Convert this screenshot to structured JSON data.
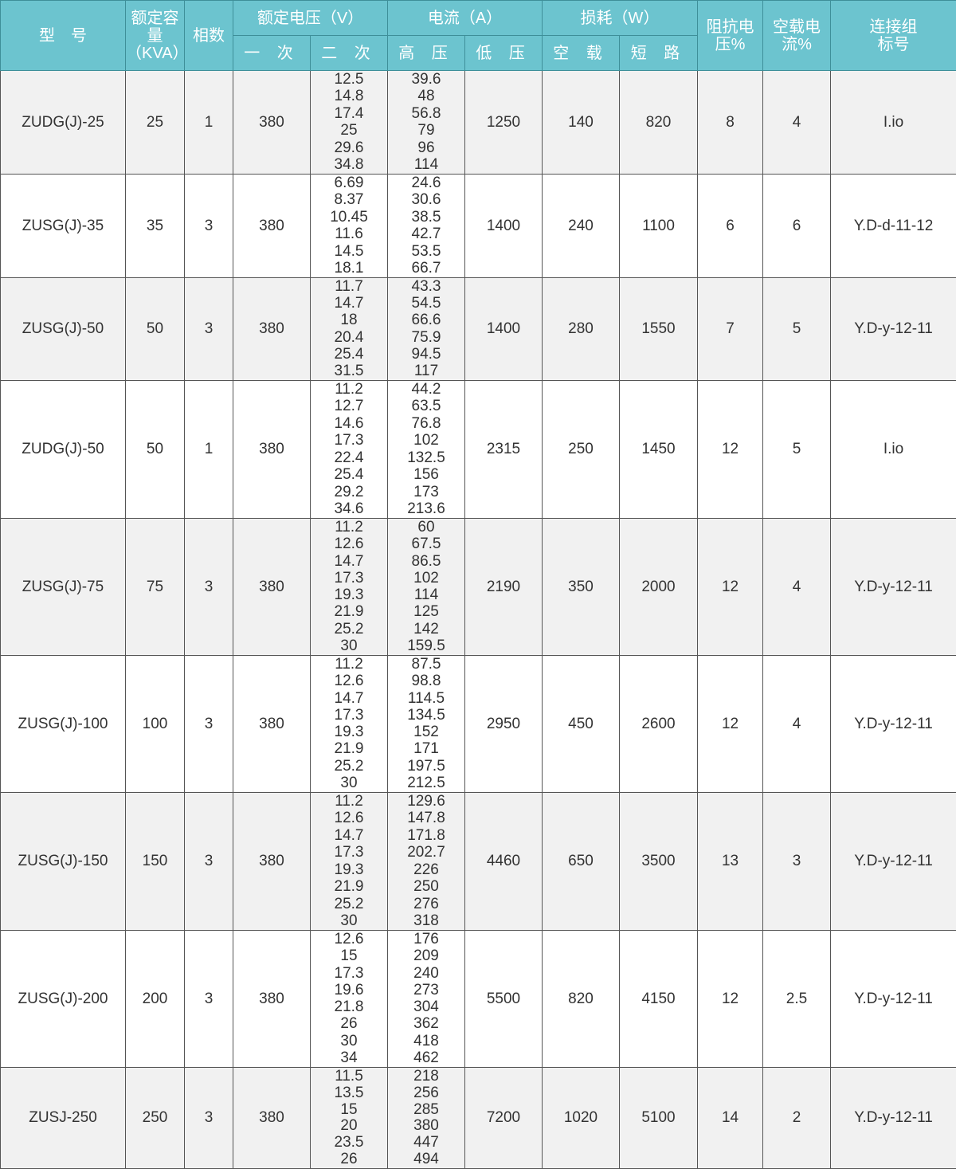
{
  "header": {
    "model": "型　号",
    "capacity": "额定容量（KVA）",
    "phase": "相数",
    "rated_voltage": "额定电压（V）",
    "primary": "一 次",
    "secondary": "二 次",
    "current": "电流（A）",
    "high_voltage": "高 压",
    "low_voltage": "低 压",
    "loss": "损耗（W）",
    "no_load": "空 载",
    "short_circuit": "短 路",
    "impedance_voltage": "阻抗电压%",
    "no_load_current": "空载电流%",
    "connection_group": "连接组标号"
  },
  "colors": {
    "header_bg": "#6cc4cf",
    "row_gray": "#f1f1f1",
    "row_white": "#ffffff"
  },
  "rows": [
    {
      "model": "ZUDG(J)-25",
      "capacity": "25",
      "phase": "1",
      "primary": "380",
      "secondary": [
        "12.5",
        "14.8",
        "17.4",
        "25",
        "29.6",
        "34.8"
      ],
      "high": [
        "39.6",
        "48",
        "56.8",
        "79",
        "96",
        "114"
      ],
      "low": "1250",
      "no_load": "140",
      "short": "820",
      "impedance": "8",
      "no_load_current": "4",
      "group": "I.io"
    },
    {
      "model": "ZUSG(J)-35",
      "capacity": "35",
      "phase": "3",
      "primary": "380",
      "secondary": [
        "6.69",
        "8.37",
        "10.45",
        "11.6",
        "14.5",
        "18.1"
      ],
      "high": [
        "24.6",
        "30.6",
        "38.5",
        "42.7",
        "53.5",
        "66.7"
      ],
      "low": "1400",
      "no_load": "240",
      "short": "1100",
      "impedance": "6",
      "no_load_current": "6",
      "group": "Y.D-d-11-12"
    },
    {
      "model": "ZUSG(J)-50",
      "capacity": "50",
      "phase": "3",
      "primary": "380",
      "secondary": [
        "11.7",
        "14.7",
        "18",
        "20.4",
        "25.4",
        "31.5"
      ],
      "high": [
        "43.3",
        "54.5",
        "66.6",
        "75.9",
        "94.5",
        "117"
      ],
      "low": "1400",
      "no_load": "280",
      "short": "1550",
      "impedance": "7",
      "no_load_current": "5",
      "group": "Y.D-y-12-11"
    },
    {
      "model": "ZUDG(J)-50",
      "capacity": "50",
      "phase": "1",
      "primary": "380",
      "secondary": [
        "11.2",
        "12.7",
        "14.6",
        "17.3",
        "22.4",
        "25.4",
        "29.2",
        "34.6"
      ],
      "high": [
        "44.2",
        "63.5",
        "76.8",
        "102",
        "132.5",
        "156",
        "173",
        "213.6"
      ],
      "low": "2315",
      "no_load": "250",
      "short": "1450",
      "impedance": "12",
      "no_load_current": "5",
      "group": "I.io"
    },
    {
      "model": "ZUSG(J)-75",
      "capacity": "75",
      "phase": "3",
      "primary": "380",
      "secondary": [
        "11.2",
        "12.6",
        "14.7",
        "17.3",
        "19.3",
        "21.9",
        "25.2",
        "30"
      ],
      "high": [
        "60",
        "67.5",
        "86.5",
        "102",
        "114",
        "125",
        "142",
        "159.5"
      ],
      "low": "2190",
      "no_load": "350",
      "short": "2000",
      "impedance": "12",
      "no_load_current": "4",
      "group": "Y.D-y-12-11"
    },
    {
      "model": "ZUSG(J)-100",
      "capacity": "100",
      "phase": "3",
      "primary": "380",
      "secondary": [
        "11.2",
        "12.6",
        "14.7",
        "17.3",
        "19.3",
        "21.9",
        "25.2",
        "30"
      ],
      "high": [
        "87.5",
        "98.8",
        "114.5",
        "134.5",
        "152",
        "171",
        "197.5",
        "212.5"
      ],
      "low": "2950",
      "no_load": "450",
      "short": "2600",
      "impedance": "12",
      "no_load_current": "4",
      "group": "Y.D-y-12-11"
    },
    {
      "model": "ZUSG(J)-150",
      "capacity": "150",
      "phase": "3",
      "primary": "380",
      "secondary": [
        "11.2",
        "12.6",
        "14.7",
        "17.3",
        "19.3",
        "21.9",
        "25.2",
        "30"
      ],
      "high": [
        "129.6",
        "147.8",
        "171.8",
        "202.7",
        "226",
        "250",
        "276",
        "318"
      ],
      "low": "4460",
      "no_load": "650",
      "short": "3500",
      "impedance": "13",
      "no_load_current": "3",
      "group": "Y.D-y-12-11"
    },
    {
      "model": "ZUSG(J)-200",
      "capacity": "200",
      "phase": "3",
      "primary": "380",
      "secondary": [
        "12.6",
        "15",
        "17.3",
        "19.6",
        "21.8",
        "26",
        "30",
        "34"
      ],
      "high": [
        "176",
        "209",
        "240",
        "273",
        "304",
        "362",
        "418",
        "462"
      ],
      "low": "5500",
      "no_load": "820",
      "short": "4150",
      "impedance": "12",
      "no_load_current": "2.5",
      "group": "Y.D-y-12-11"
    },
    {
      "model": "ZUSJ-250",
      "capacity": "250",
      "phase": "3",
      "primary": "380",
      "secondary": [
        "11.5",
        "13.5",
        "15",
        "20",
        "23.5",
        "26"
      ],
      "high": [
        "218",
        "256",
        "285",
        "380",
        "447",
        "494"
      ],
      "low": "7200",
      "no_load": "1020",
      "short": "5100",
      "impedance": "14",
      "no_load_current": "2",
      "group": "Y.D-y-12-11"
    }
  ]
}
